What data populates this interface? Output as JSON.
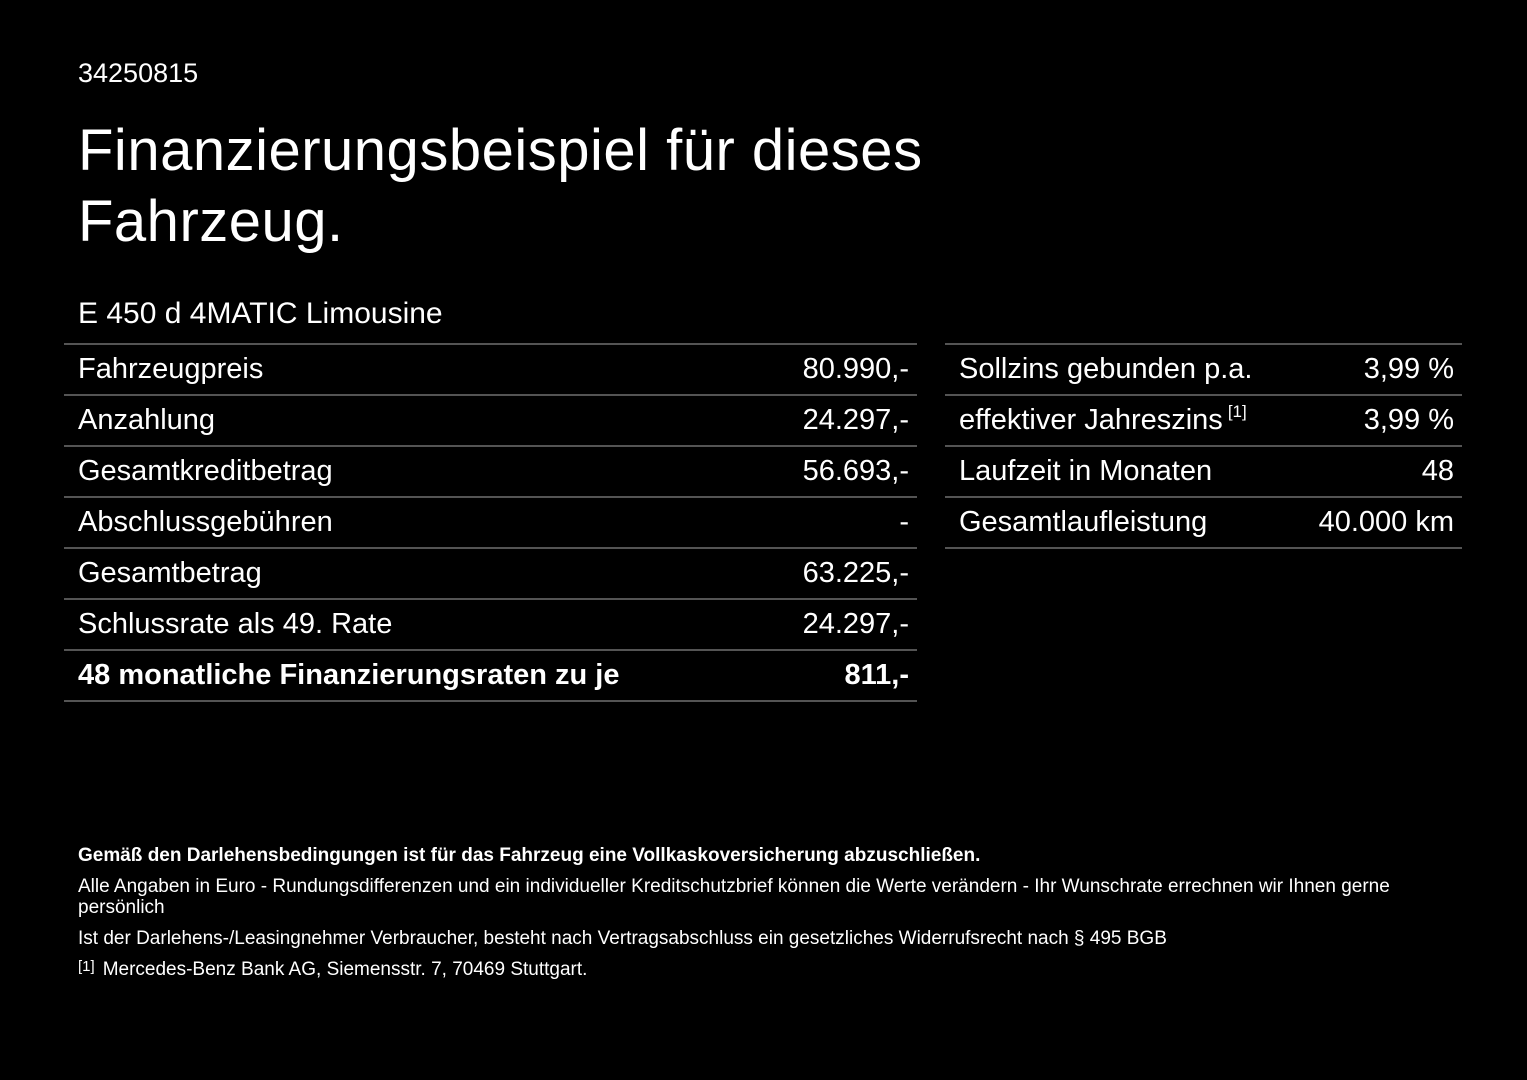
{
  "page": {
    "doc_id": "34250815",
    "title": "Finanzierungsbeispiel für dieses Fahrzeug.",
    "model": "E 450 d 4MATIC Limousine",
    "background_color": "#000000",
    "text_color": "#ffffff",
    "line_color": "#545454"
  },
  "left_table": {
    "rows": [
      {
        "label": "Fahrzeugpreis",
        "value": "80.990,-"
      },
      {
        "label": "Anzahlung",
        "value": "24.297,-"
      },
      {
        "label": "Gesamtkreditbetrag",
        "value": "56.693,-"
      },
      {
        "label": "Abschlussgebühren",
        "value": "-"
      },
      {
        "label": "Gesamtbetrag",
        "value": "63.225,-"
      },
      {
        "label": "Schlussrate als 49. Rate",
        "value": "24.297,-"
      },
      {
        "label": "48 monatliche Finanzierungsraten zu je",
        "value": "811,-"
      }
    ]
  },
  "right_table": {
    "rows": [
      {
        "label": "Sollzins gebunden p.a.",
        "value": "3,99 %"
      },
      {
        "label": "effektiver Jahreszins",
        "sup": "[1]",
        "value": "3,99 %"
      },
      {
        "label": "Laufzeit in Monaten",
        "value": "48"
      },
      {
        "label": "Gesamtlaufleistung",
        "value": "40.000 km"
      }
    ]
  },
  "footnotes": {
    "bold_note": "Gemäß den Darlehensbedingungen ist für das Fahrzeug eine Vollkaskoversicherung abzuschließen.",
    "note2": "Alle Angaben in Euro - Rundungsdifferenzen und ein individueller Kreditschutzbrief können die Werte verändern - Ihr Wunschrate errechnen wir Ihnen gerne persönlich",
    "note3": "Ist der Darlehens-/Leasingnehmer Verbraucher, besteht nach Vertragsabschluss ein gesetzliches Widerrufsrecht nach § 495 BGB",
    "marker": "[1]",
    "bank": "Mercedes-Benz Bank AG, Siemensstr. 7, 70469 Stuttgart."
  }
}
